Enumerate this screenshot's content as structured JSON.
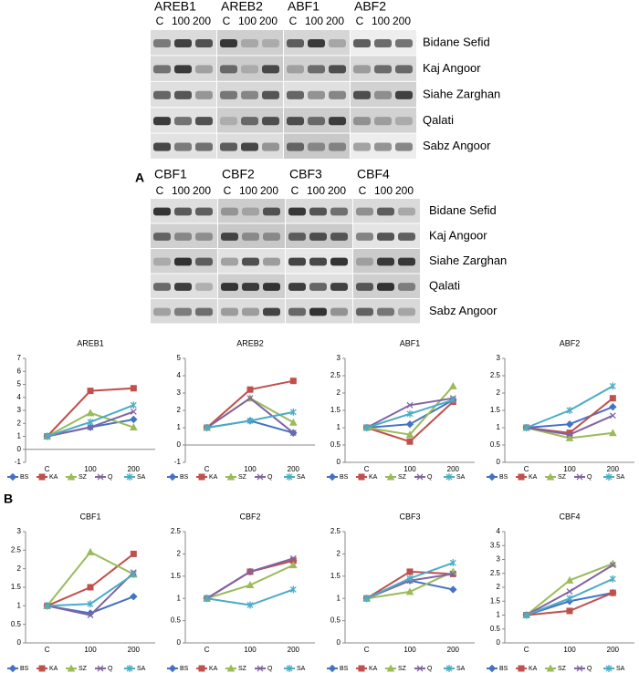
{
  "panel_labels": [
    "A",
    "B"
  ],
  "gels": [
    {
      "genes": [
        "AREB1",
        "AREB2",
        "ABF1",
        "ABF2"
      ],
      "doses": [
        "C",
        "100",
        "200"
      ],
      "cultivars": [
        "Bidane Sefid",
        "Kaj Angoor",
        "Siahe Zarghan",
        "Qalati",
        "Sabz Angoor"
      ]
    },
    {
      "genes": [
        "CBF1",
        "CBF2",
        "CBF3",
        "CBF4"
      ],
      "doses": [
        "C",
        "100",
        "200"
      ],
      "cultivars": [
        "Bidane Sefid",
        "Kaj Angoor",
        "Siahe Zarghan",
        "Qalati",
        "Sabz Angoor"
      ]
    }
  ],
  "chart_data": [
    {
      "type": "line",
      "title": "AREB1",
      "categories": [
        "C",
        "100",
        "200"
      ],
      "ylim": [
        -1,
        7
      ],
      "yticks": [
        -1,
        0,
        1,
        2,
        3,
        4,
        5,
        6,
        7
      ],
      "series": [
        {
          "name": "BS",
          "color": "#4472c4",
          "values": [
            1,
            1.7,
            2.3
          ]
        },
        {
          "name": "KA",
          "color": "#c0504d",
          "values": [
            1,
            4.5,
            4.7
          ]
        },
        {
          "name": "SZ",
          "color": "#9bbb59",
          "values": [
            1,
            2.8,
            1.7
          ]
        },
        {
          "name": "Q",
          "color": "#8064a2",
          "values": [
            1,
            1.7,
            2.9
          ]
        },
        {
          "name": "SA",
          "color": "#4bacc6",
          "values": [
            1,
            2.1,
            3.4
          ]
        }
      ]
    },
    {
      "type": "line",
      "title": "AREB2",
      "categories": [
        "C",
        "100",
        "200"
      ],
      "ylim": [
        -1,
        5
      ],
      "yticks": [
        -1,
        0,
        1,
        2,
        3,
        4,
        5
      ],
      "series": [
        {
          "name": "BS",
          "color": "#4472c4",
          "values": [
            1,
            1.4,
            0.7
          ]
        },
        {
          "name": "KA",
          "color": "#c0504d",
          "values": [
            1,
            3.2,
            3.7
          ]
        },
        {
          "name": "SZ",
          "color": "#9bbb59",
          "values": [
            1,
            2.7,
            1.3
          ]
        },
        {
          "name": "Q",
          "color": "#8064a2",
          "values": [
            1,
            2.7,
            0.7
          ]
        },
        {
          "name": "SA",
          "color": "#4bacc6",
          "values": [
            1,
            1.4,
            1.9
          ]
        }
      ]
    },
    {
      "type": "line",
      "title": "ABF1",
      "categories": [
        "C",
        "100",
        "200"
      ],
      "ylim": [
        0,
        3
      ],
      "yticks": [
        0,
        0.5,
        1,
        1.5,
        2,
        2.5,
        3
      ],
      "series": [
        {
          "name": "BS",
          "color": "#4472c4",
          "values": [
            1,
            1.1,
            1.8
          ]
        },
        {
          "name": "KA",
          "color": "#c0504d",
          "values": [
            1,
            0.6,
            1.75
          ]
        },
        {
          "name": "SZ",
          "color": "#9bbb59",
          "values": [
            1,
            0.8,
            2.2
          ]
        },
        {
          "name": "Q",
          "color": "#8064a2",
          "values": [
            1,
            1.65,
            1.85
          ]
        },
        {
          "name": "SA",
          "color": "#4bacc6",
          "values": [
            1,
            1.4,
            1.8
          ]
        }
      ]
    },
    {
      "type": "line",
      "title": "ABF2",
      "categories": [
        "C",
        "100",
        "200"
      ],
      "ylim": [
        0,
        3
      ],
      "yticks": [
        0,
        0.5,
        1,
        1.5,
        2,
        2.5,
        3
      ],
      "series": [
        {
          "name": "BS",
          "color": "#4472c4",
          "values": [
            1,
            1.1,
            1.6
          ]
        },
        {
          "name": "KA",
          "color": "#c0504d",
          "values": [
            1,
            0.85,
            1.85
          ]
        },
        {
          "name": "SZ",
          "color": "#9bbb59",
          "values": [
            1,
            0.7,
            0.85
          ]
        },
        {
          "name": "Q",
          "color": "#8064a2",
          "values": [
            1,
            0.8,
            1.35
          ]
        },
        {
          "name": "SA",
          "color": "#4bacc6",
          "values": [
            1,
            1.5,
            2.2
          ]
        }
      ]
    },
    {
      "type": "line",
      "title": "CBF1",
      "categories": [
        "C",
        "100",
        "200"
      ],
      "ylim": [
        0,
        3
      ],
      "yticks": [
        0,
        0.5,
        1,
        1.5,
        2,
        2.5,
        3
      ],
      "series": [
        {
          "name": "BS",
          "color": "#4472c4",
          "values": [
            1,
            0.8,
            1.25
          ]
        },
        {
          "name": "KA",
          "color": "#c0504d",
          "values": [
            1,
            1.5,
            2.4
          ]
        },
        {
          "name": "SZ",
          "color": "#9bbb59",
          "values": [
            1,
            2.45,
            1.85
          ]
        },
        {
          "name": "Q",
          "color": "#8064a2",
          "values": [
            1,
            0.75,
            1.9
          ]
        },
        {
          "name": "SA",
          "color": "#4bacc6",
          "values": [
            1,
            1.05,
            1.85
          ]
        }
      ]
    },
    {
      "type": "line",
      "title": "CBF2",
      "categories": [
        "C",
        "100",
        "200"
      ],
      "ylim": [
        0,
        2.5
      ],
      "yticks": [
        0,
        0.5,
        1,
        1.5,
        2,
        2.5
      ],
      "series": [
        {
          "name": "BS",
          "color": "#4472c4",
          "values": [
            1,
            1.6,
            1.85
          ]
        },
        {
          "name": "KA",
          "color": "#c0504d",
          "values": [
            1,
            1.6,
            1.85
          ]
        },
        {
          "name": "SZ",
          "color": "#9bbb59",
          "values": [
            1,
            1.3,
            1.75
          ]
        },
        {
          "name": "Q",
          "color": "#8064a2",
          "values": [
            1,
            1.6,
            1.9
          ]
        },
        {
          "name": "SA",
          "color": "#4bacc6",
          "values": [
            1,
            0.85,
            1.2
          ]
        }
      ]
    },
    {
      "type": "line",
      "title": "CBF3",
      "categories": [
        "C",
        "100",
        "200"
      ],
      "ylim": [
        0,
        2.5
      ],
      "yticks": [
        0,
        0.5,
        1,
        1.5,
        2,
        2.5
      ],
      "series": [
        {
          "name": "BS",
          "color": "#4472c4",
          "values": [
            1,
            1.4,
            1.2
          ]
        },
        {
          "name": "KA",
          "color": "#c0504d",
          "values": [
            1,
            1.6,
            1.55
          ]
        },
        {
          "name": "SZ",
          "color": "#9bbb59",
          "values": [
            1,
            1.15,
            1.6
          ]
        },
        {
          "name": "Q",
          "color": "#8064a2",
          "values": [
            1,
            1.4,
            1.55
          ]
        },
        {
          "name": "SA",
          "color": "#4bacc6",
          "values": [
            1,
            1.45,
            1.8
          ]
        }
      ]
    },
    {
      "type": "line",
      "title": "CBF4",
      "categories": [
        "C",
        "100",
        "200"
      ],
      "ylim": [
        0,
        4
      ],
      "yticks": [
        0,
        0.5,
        1,
        1.5,
        2,
        2.5,
        3,
        3.5,
        4
      ],
      "series": [
        {
          "name": "BS",
          "color": "#4472c4",
          "values": [
            1,
            1.5,
            1.8
          ]
        },
        {
          "name": "KA",
          "color": "#c0504d",
          "values": [
            1,
            1.15,
            1.8
          ]
        },
        {
          "name": "SZ",
          "color": "#9bbb59",
          "values": [
            1,
            2.25,
            2.85
          ]
        },
        {
          "name": "Q",
          "color": "#8064a2",
          "values": [
            1,
            1.85,
            2.8
          ]
        },
        {
          "name": "SA",
          "color": "#4bacc6",
          "values": [
            1,
            1.6,
            2.3
          ]
        }
      ]
    }
  ]
}
